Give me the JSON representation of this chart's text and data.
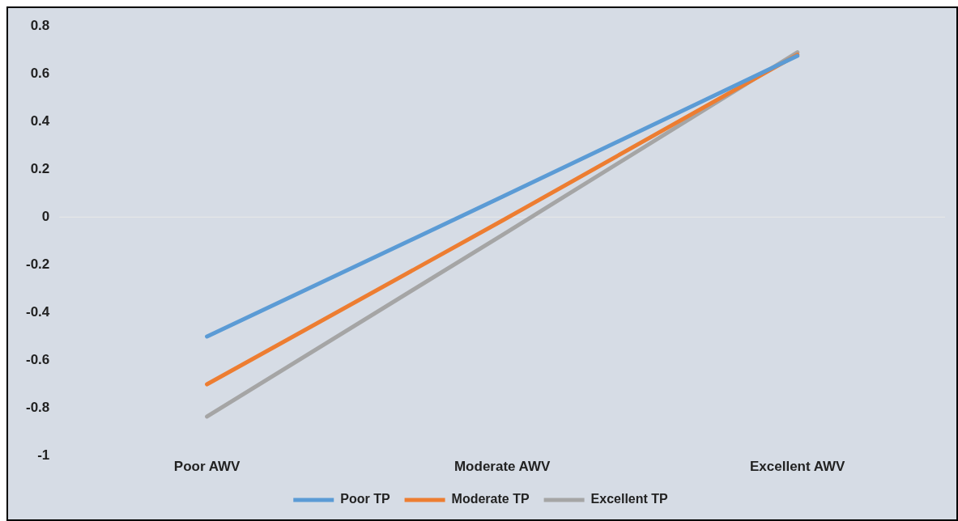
{
  "chart_data": {
    "type": "line",
    "categories": [
      "Poor AWV",
      "Moderate AWV",
      "Excellent AWV"
    ],
    "series": [
      {
        "name": "Poor TP",
        "color": "#5b9bd5",
        "values": [
          -0.5,
          0.085,
          0.675
        ]
      },
      {
        "name": "Moderate TP",
        "color": "#ed7d31",
        "values": [
          -0.7,
          -0.015,
          0.68
        ]
      },
      {
        "name": "Excellent TP",
        "color": "#a5a5a5",
        "values": [
          -0.835,
          -0.075,
          0.69
        ]
      }
    ],
    "ylim": [
      -1,
      0.8
    ],
    "yticks": [
      -1,
      -0.8,
      -0.6,
      -0.4,
      -0.2,
      0,
      0.2,
      0.4,
      0.6,
      0.8
    ],
    "ref_lines": [
      {
        "axis": "y",
        "value": 0,
        "color": "#e8e8e8"
      }
    ],
    "grid": false,
    "legend": "bottom",
    "marker": "none",
    "line_style": "solid"
  }
}
